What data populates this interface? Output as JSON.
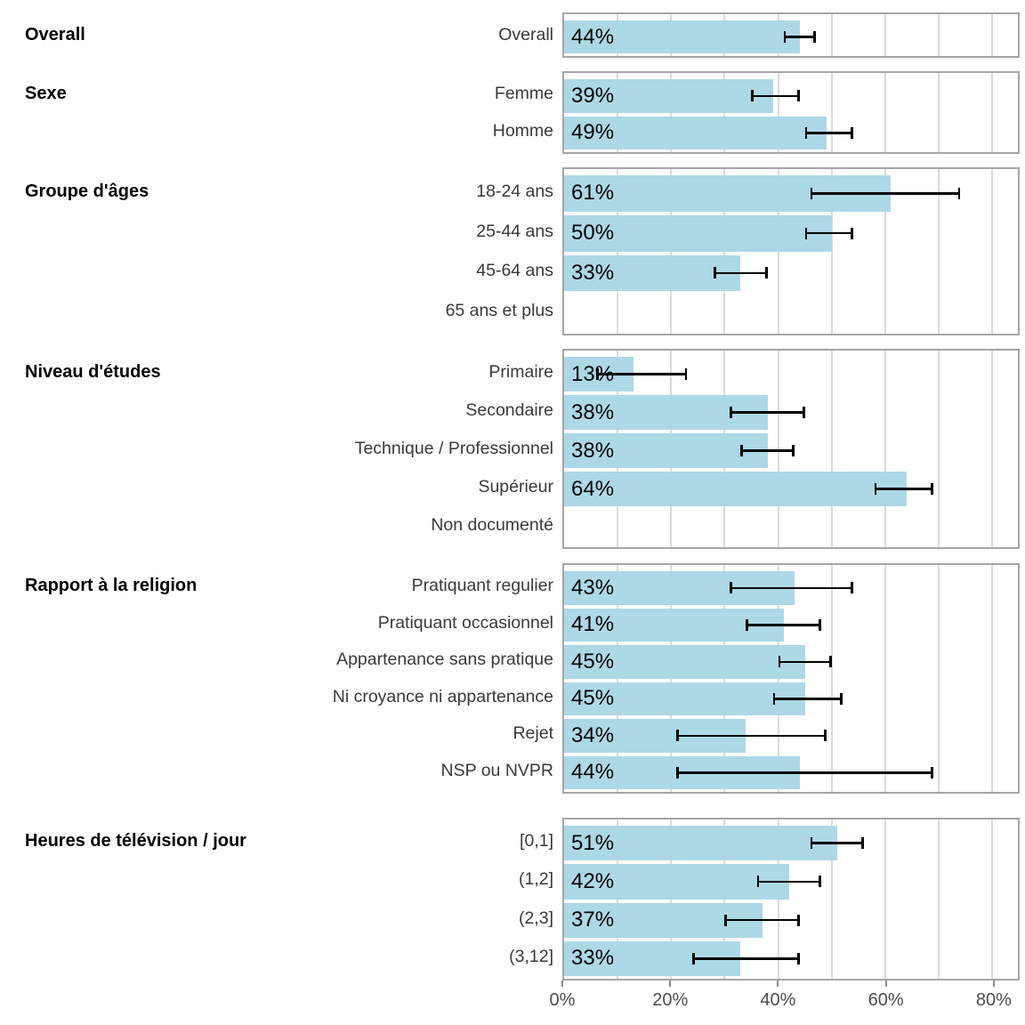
{
  "chart_data": {
    "type": "bar",
    "orientation": "horizontal",
    "value_unit": "%",
    "title": "",
    "x_axis": {
      "tick_values": [
        0,
        20,
        40,
        60,
        80
      ],
      "tick_labels": [
        "0%",
        "20%",
        "40%",
        "60%",
        "80%"
      ],
      "min": 0,
      "max": 84.8,
      "grid_step": 10,
      "grid_on": true
    },
    "legend": null,
    "colors": {
      "bar": "#ADD8E6",
      "error_bar": "#000000",
      "panel_border": "#a6a6a6",
      "gridline": "#dbdbdb",
      "axis_tick": "#8c8c8c",
      "axis_text": "#4d4d4d",
      "row_label": "#3a3a3a",
      "group_label": "#000000",
      "value_label": "#000000"
    },
    "groups": [
      {
        "label": "Overall",
        "rows": [
          {
            "label": "Overall",
            "value": 44,
            "value_label": "44%",
            "ci": [
              41,
              47
            ]
          }
        ]
      },
      {
        "label": "Sexe",
        "rows": [
          {
            "label": "Femme",
            "value": 39,
            "value_label": "39%",
            "ci": [
              35,
              44
            ]
          },
          {
            "label": "Homme",
            "value": 49,
            "value_label": "49%",
            "ci": [
              45,
              54
            ]
          }
        ]
      },
      {
        "label": "Groupe d'âges",
        "rows": [
          {
            "label": "18-24 ans",
            "value": 61,
            "value_label": "61%",
            "ci": [
              46,
              74
            ]
          },
          {
            "label": "25-44 ans",
            "value": 50,
            "value_label": "50%",
            "ci": [
              45,
              54
            ]
          },
          {
            "label": "45-64 ans",
            "value": 33,
            "value_label": "33%",
            "ci": [
              28,
              38
            ]
          },
          {
            "label": "65 ans et plus",
            "value": null,
            "value_label": "",
            "ci": null
          }
        ]
      },
      {
        "label": "Niveau d'études",
        "rows": [
          {
            "label": "Primaire",
            "value": 13,
            "value_label": "13%",
            "ci": [
              6,
              23
            ]
          },
          {
            "label": "Secondaire",
            "value": 38,
            "value_label": "38%",
            "ci": [
              31,
              45
            ]
          },
          {
            "label": "Technique / Professionnel",
            "value": 38,
            "value_label": "38%",
            "ci": [
              33,
              43
            ]
          },
          {
            "label": "Supérieur",
            "value": 64,
            "value_label": "64%",
            "ci": [
              58,
              69
            ]
          },
          {
            "label": "Non documenté",
            "value": null,
            "value_label": "",
            "ci": null
          }
        ]
      },
      {
        "label": "Rapport à la religion",
        "rows": [
          {
            "label": "Pratiquant regulier",
            "value": 43,
            "value_label": "43%",
            "ci": [
              31,
              54
            ]
          },
          {
            "label": "Pratiquant occasionnel",
            "value": 41,
            "value_label": "41%",
            "ci": [
              34,
              48
            ]
          },
          {
            "label": "Appartenance sans pratique",
            "value": 45,
            "value_label": "45%",
            "ci": [
              40,
              50
            ]
          },
          {
            "label": "Ni croyance ni appartenance",
            "value": 45,
            "value_label": "45%",
            "ci": [
              39,
              52
            ]
          },
          {
            "label": "Rejet",
            "value": 34,
            "value_label": "34%",
            "ci": [
              21,
              49
            ]
          },
          {
            "label": "NSP ou NVPR",
            "value": 44,
            "value_label": "44%",
            "ci": [
              21,
              69
            ]
          }
        ]
      },
      {
        "label": "Heures de télévision / jour",
        "rows": [
          {
            "label": "[0,1]",
            "value": 51,
            "value_label": "51%",
            "ci": [
              46,
              56
            ]
          },
          {
            "label": "(1,2]",
            "value": 42,
            "value_label": "42%",
            "ci": [
              36,
              48
            ]
          },
          {
            "label": "(2,3]",
            "value": 37,
            "value_label": "37%",
            "ci": [
              30,
              44
            ]
          },
          {
            "label": "(3,12]",
            "value": 33,
            "value_label": "33%",
            "ci": [
              24,
              44
            ]
          }
        ]
      }
    ]
  }
}
